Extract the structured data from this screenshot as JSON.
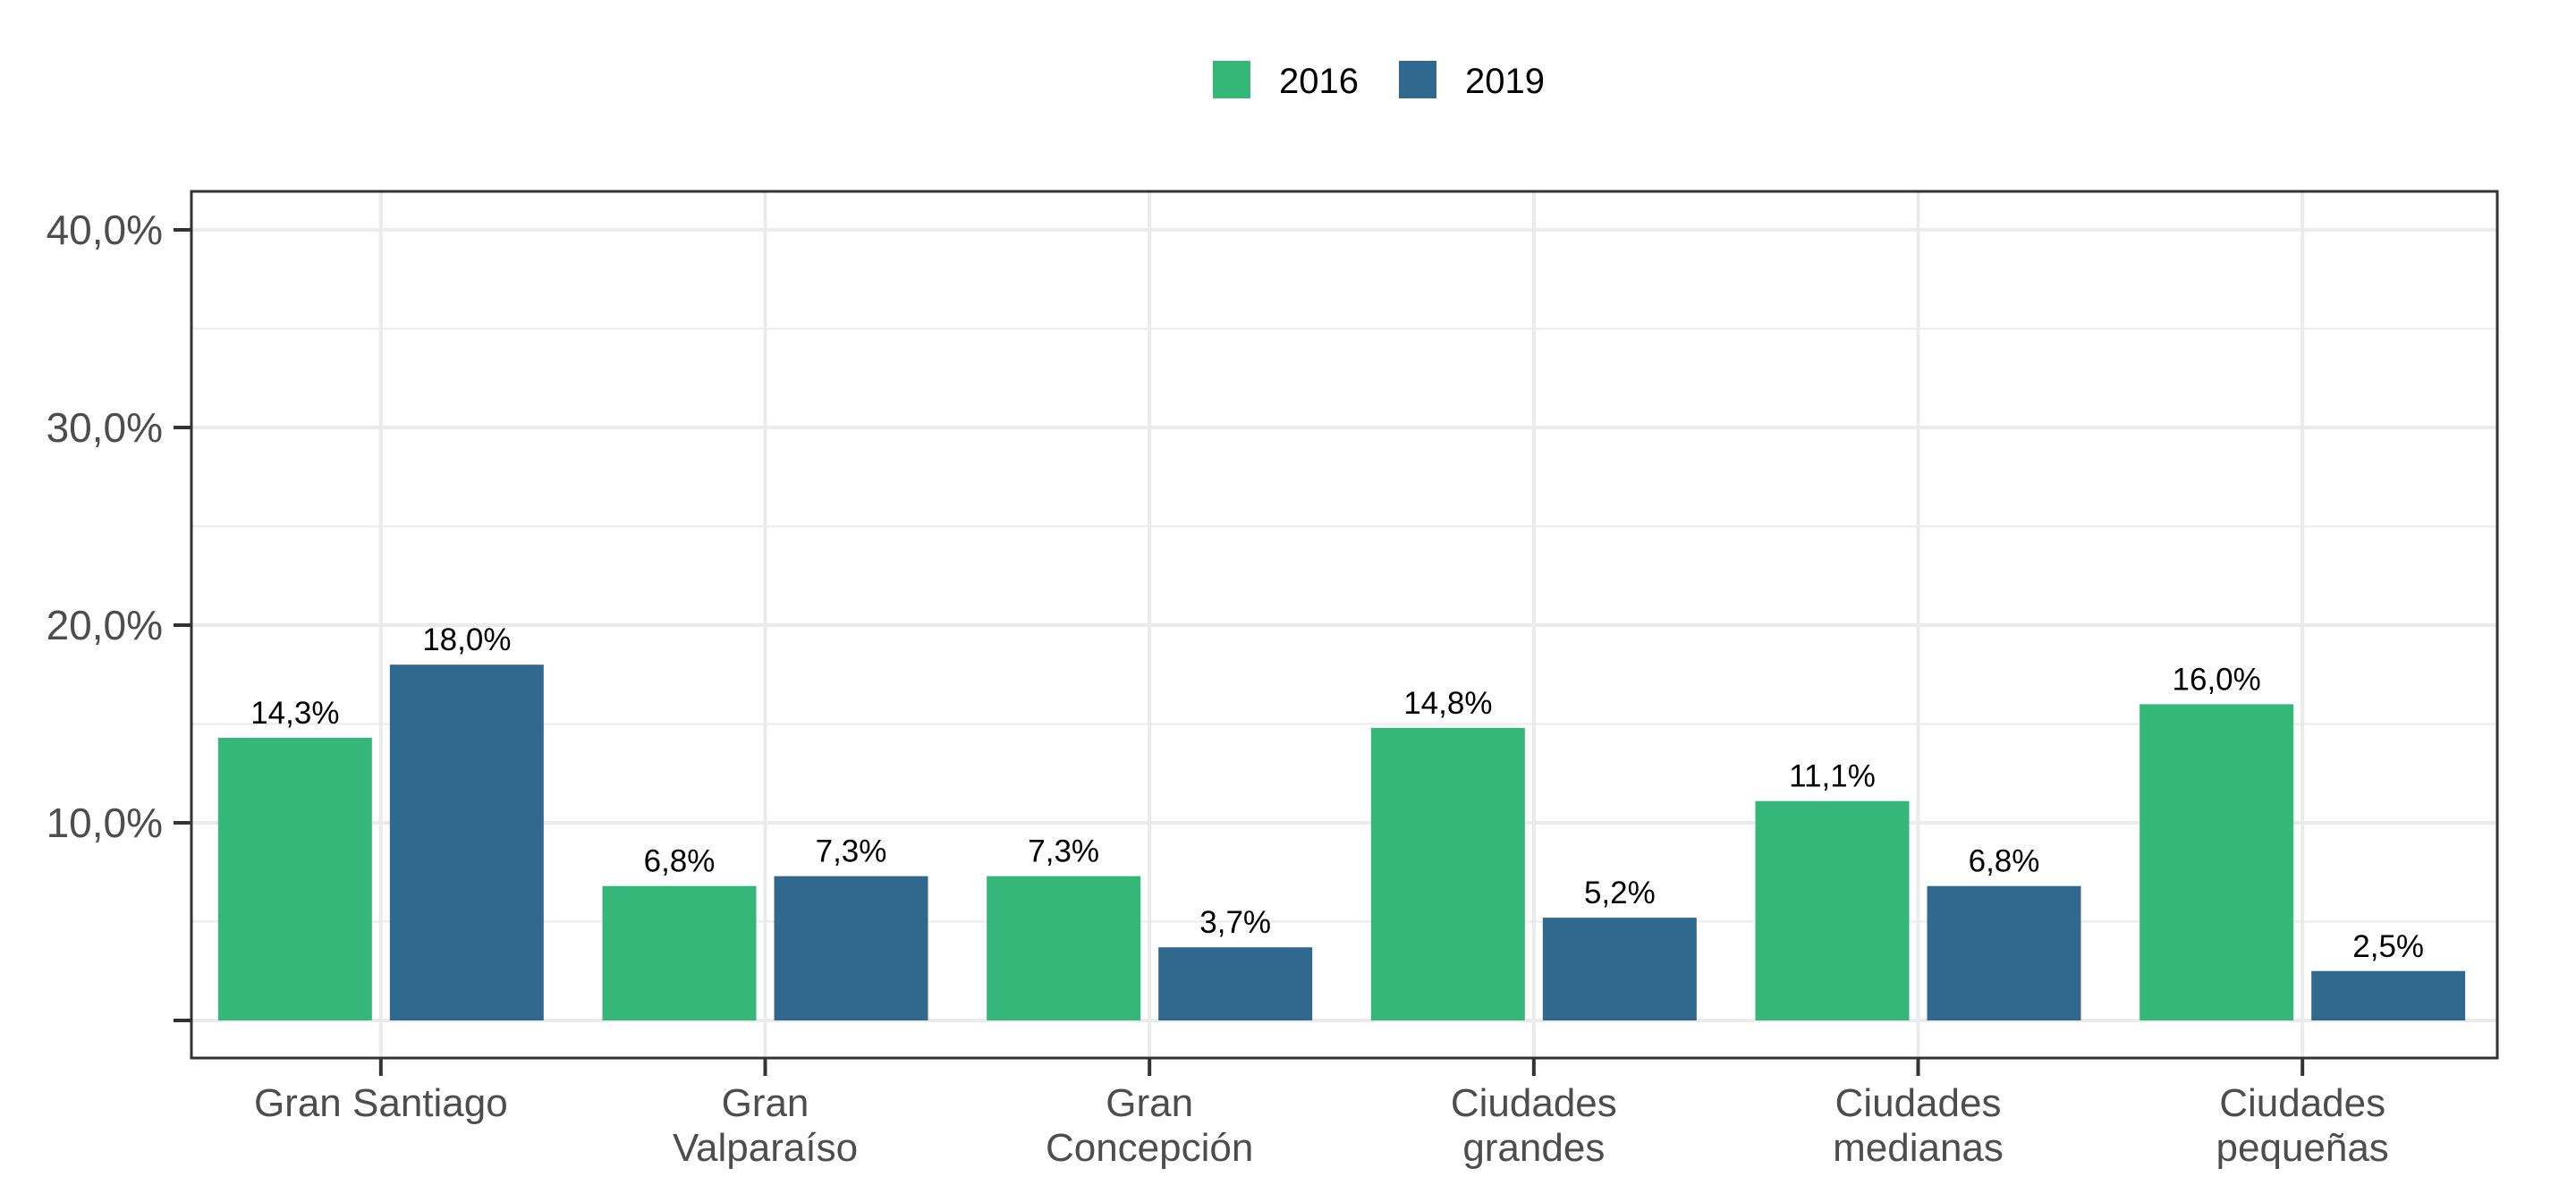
{
  "chart_data": {
    "type": "bar",
    "categories": [
      [
        "Gran Santiago"
      ],
      [
        "Gran",
        "Valparaíso"
      ],
      [
        "Gran",
        "Concepción"
      ],
      [
        "Ciudades",
        "grandes"
      ],
      [
        "Ciudades",
        "medianas"
      ],
      [
        "Ciudades",
        "pequeñas"
      ]
    ],
    "series": [
      {
        "name": "2016",
        "color": "#35b779",
        "values": [
          14.3,
          6.8,
          7.3,
          14.8,
          11.1,
          16.0
        ],
        "labels": [
          "14,3%",
          "6,8%",
          "7,3%",
          "14,8%",
          "11,1%",
          "16,0%"
        ]
      },
      {
        "name": "2019",
        "color": "#31688e",
        "values": [
          18.0,
          7.3,
          3.7,
          5.2,
          6.8,
          2.5
        ],
        "labels": [
          "18,0%",
          "7,3%",
          "3,7%",
          "5,2%",
          "6,8%",
          "2,5%"
        ]
      }
    ],
    "ylim": [
      0,
      40
    ],
    "yticks": [
      0,
      10,
      20,
      30,
      40
    ],
    "ytick_labels": [
      "",
      "10,0%",
      "20,0%",
      "30,0%",
      "40,0%"
    ],
    "grid": true,
    "legend_position": "top"
  }
}
